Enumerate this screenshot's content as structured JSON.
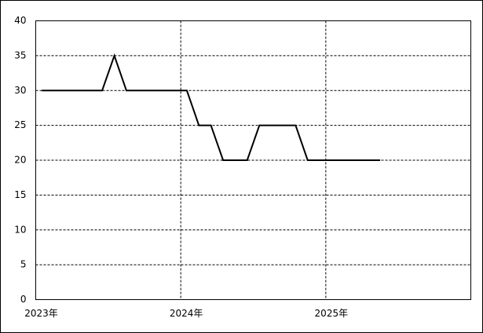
{
  "chart_data": {
    "type": "line",
    "x": [
      2023.042,
      2023.125,
      2023.208,
      2023.292,
      2023.375,
      2023.458,
      2023.542,
      2023.625,
      2023.708,
      2023.792,
      2023.875,
      2023.958,
      2024.042,
      2024.125,
      2024.208,
      2024.292,
      2024.375,
      2024.458,
      2024.542,
      2024.625,
      2024.708,
      2024.792,
      2024.875,
      2024.958,
      2025.042,
      2025.125,
      2025.208,
      2025.292,
      2025.375
    ],
    "values": [
      30,
      30,
      30,
      30,
      30,
      30,
      35,
      30,
      30,
      30,
      30,
      30,
      30,
      25,
      25,
      20,
      20,
      20,
      25,
      25,
      25,
      25,
      20,
      20,
      20,
      20,
      20,
      20,
      20
    ],
    "color": "#000000",
    "xlim": [
      2023,
      2026
    ],
    "xticks": [
      {
        "value": 2023,
        "label": "2023年"
      },
      {
        "value": 2024,
        "label": "2024年"
      },
      {
        "value": 2025,
        "label": "2025年"
      }
    ],
    "ylim": [
      0,
      40
    ],
    "yticks": [
      0,
      5,
      10,
      15,
      20,
      25,
      30,
      35,
      40
    ],
    "grid": true
  }
}
